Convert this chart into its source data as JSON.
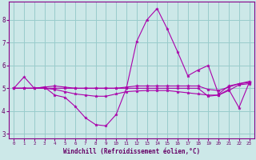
{
  "xlabel": "Windchill (Refroidissement éolien,°C)",
  "bg_color": "#cce8e8",
  "grid_color": "#99cccc",
  "line_color": "#aa00aa",
  "xlim": [
    -0.5,
    23.5
  ],
  "ylim": [
    2.8,
    8.8
  ],
  "yticks": [
    3,
    4,
    5,
    6,
    7,
    8
  ],
  "xticks": [
    0,
    1,
    2,
    3,
    4,
    5,
    6,
    7,
    8,
    9,
    10,
    11,
    12,
    13,
    14,
    15,
    16,
    17,
    18,
    19,
    20,
    21,
    22,
    23
  ],
  "line1_x": [
    0,
    1,
    2,
    3,
    4,
    5,
    6,
    7,
    8,
    9,
    10,
    11,
    12,
    13,
    14,
    15,
    16,
    17,
    18,
    19,
    20,
    21,
    22,
    23
  ],
  "line1_y": [
    5.0,
    5.5,
    5.0,
    5.05,
    4.7,
    4.6,
    4.2,
    3.7,
    3.4,
    3.35,
    3.85,
    5.0,
    7.05,
    8.0,
    8.5,
    7.6,
    6.6,
    5.55,
    5.8,
    6.0,
    4.75,
    5.1,
    5.2,
    5.3
  ],
  "line2_x": [
    0,
    1,
    2,
    3,
    4,
    5,
    6,
    7,
    8,
    9,
    10,
    11,
    12,
    13,
    14,
    15,
    16,
    17,
    18,
    19,
    20,
    21,
    22,
    23
  ],
  "line2_y": [
    5.0,
    5.0,
    5.0,
    5.0,
    4.95,
    4.85,
    4.75,
    4.7,
    4.65,
    4.65,
    4.75,
    4.85,
    4.88,
    4.9,
    4.9,
    4.9,
    4.85,
    4.8,
    4.75,
    4.7,
    4.7,
    4.9,
    5.15,
    5.2
  ],
  "line3_x": [
    0,
    1,
    2,
    3,
    4,
    5,
    6,
    7,
    8,
    9,
    10,
    11,
    12,
    13,
    14,
    15,
    16,
    17,
    18,
    19,
    20,
    21,
    22,
    23
  ],
  "line3_y": [
    5.0,
    5.0,
    5.0,
    5.05,
    5.1,
    5.05,
    5.0,
    5.0,
    5.0,
    5.0,
    5.0,
    5.05,
    5.1,
    5.1,
    5.1,
    5.1,
    5.1,
    5.1,
    5.1,
    4.95,
    4.9,
    5.05,
    5.2,
    5.25
  ],
  "line4_x": [
    0,
    1,
    2,
    3,
    4,
    5,
    6,
    7,
    8,
    9,
    10,
    11,
    12,
    13,
    14,
    15,
    16,
    17,
    18,
    19,
    20,
    21,
    22,
    23
  ],
  "line4_y": [
    5.0,
    5.0,
    5.0,
    5.0,
    5.0,
    5.0,
    5.0,
    5.0,
    5.0,
    5.0,
    5.0,
    5.0,
    5.0,
    5.0,
    5.0,
    5.0,
    5.0,
    5.0,
    5.0,
    4.65,
    4.7,
    4.95,
    4.15,
    5.25
  ]
}
